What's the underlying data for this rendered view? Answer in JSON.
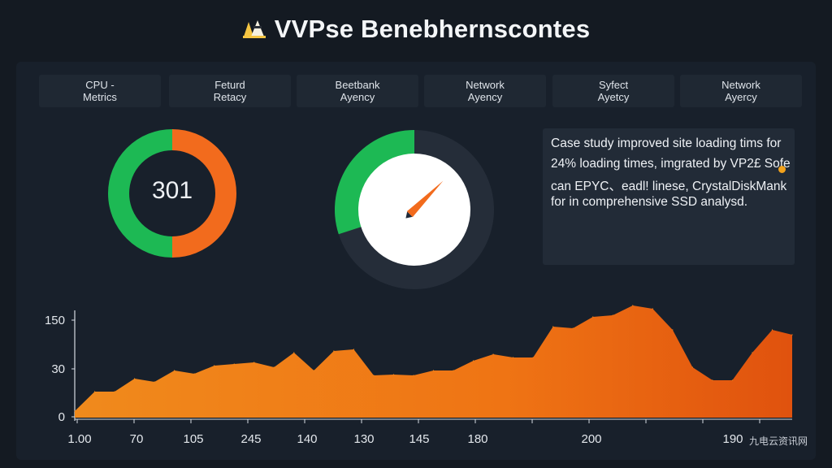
{
  "header": {
    "title": "VVPse Benebhernscontes",
    "logo_icon": "warning-cones-icon"
  },
  "tabs": [
    {
      "line1": "CPU -",
      "line2": "Metrics"
    },
    {
      "line1": "Feturd",
      "line2": "Retacy"
    },
    {
      "line1": "Beetbank",
      "line2": "Ayency"
    },
    {
      "line1": "Network",
      "line2": "Ayency"
    },
    {
      "line1": "Syfect",
      "line2": "Ayetcy"
    },
    {
      "line1": "Network",
      "line2": "Ayercy"
    }
  ],
  "donut": {
    "value": "301",
    "segments": [
      {
        "label": "orange",
        "fraction": 0.5,
        "color": "#f26b1d"
      },
      {
        "label": "green",
        "fraction": 0.5,
        "color": "#1db954"
      }
    ]
  },
  "gauge": {
    "needle_direction": "upper-right",
    "filled_fraction": 0.3,
    "fill_color": "#1db954",
    "track_color": "#252d39",
    "needle_color": "#f26b1d",
    "icon": "speedometer-icon"
  },
  "case_study": {
    "lines": [
      "Case study improved site loading tims for",
      "24% loading times, imgrated by VP2£ Sofe",
      "can EPYC、eadl! linese, CrystalDiskMank",
      "for in comprehensive SSD analysd."
    ]
  },
  "colors": {
    "background": "#141a22",
    "panel": "#18202b",
    "accent_orange": "#f26b1d",
    "accent_green": "#1db954",
    "dot": "#f2a21c"
  },
  "chart_data": {
    "type": "area",
    "title": "",
    "xlabel": "",
    "ylabel": "",
    "y_ticks": [
      "150",
      "30",
      "0"
    ],
    "x_ticks": [
      "1.00",
      "70",
      "105",
      "245",
      "140",
      "130",
      "145",
      "180",
      "200",
      "190"
    ],
    "grid": false,
    "series": [
      {
        "values": [
          8,
          32,
          32,
          48,
          44,
          58,
          54,
          64,
          66,
          68,
          62,
          80,
          58,
          82,
          84,
          52,
          53,
          52,
          58,
          58,
          70,
          78,
          74,
          74,
          112,
          110,
          124,
          126,
          138,
          134,
          108,
          62,
          46,
          46,
          80,
          108,
          102
        ]
      }
    ]
  },
  "watermark": "九电云资讯网"
}
